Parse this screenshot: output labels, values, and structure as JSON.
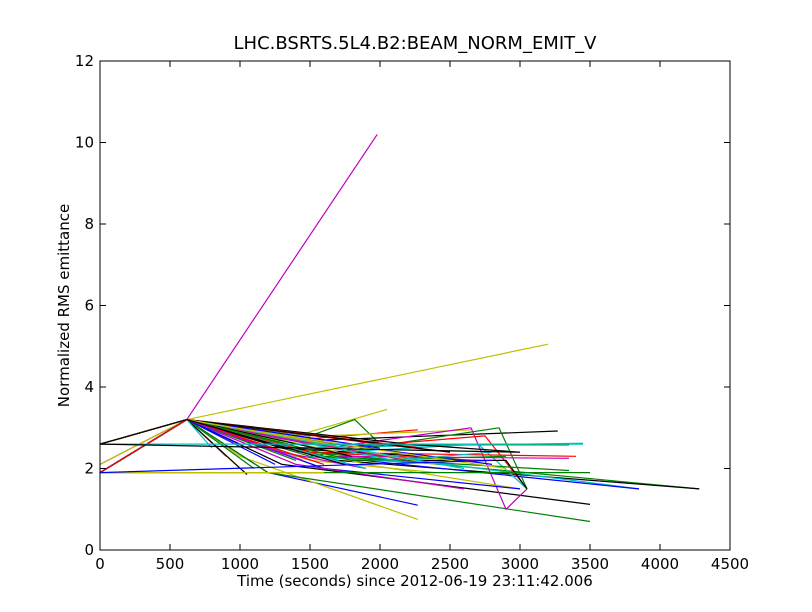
{
  "chart_data": {
    "type": "line",
    "title": "LHC.BSRTS.5L4.B2:BEAM_NORM_EMIT_V",
    "xlabel": "Time (seconds) since 2012-06-19 23:11:42.006",
    "ylabel": "Normalized RMS emittance",
    "xlim": [
      0,
      4500
    ],
    "ylim": [
      0,
      12
    ],
    "xticks": [
      0,
      500,
      1000,
      1500,
      2000,
      2500,
      3000,
      3500,
      4000,
      4500
    ],
    "yticks": [
      0,
      2,
      4,
      6,
      8,
      10,
      12
    ],
    "grid": false,
    "legend": "none",
    "series": [
      {
        "color": "#bf00bf",
        "x": [
          0,
          620,
          1980
        ],
        "y": [
          2.1,
          3.2,
          10.2
        ]
      },
      {
        "color": "#bfbf00",
        "x": [
          0,
          620,
          3200
        ],
        "y": [
          2.6,
          3.2,
          5.05
        ]
      },
      {
        "color": "#bfbf00",
        "x": [
          0,
          620,
          1200,
          2050
        ],
        "y": [
          2.1,
          3.2,
          2.6,
          3.45
        ]
      },
      {
        "color": "#008000",
        "x": [
          0,
          620,
          1500,
          1820,
          2000
        ],
        "y": [
          2.6,
          3.2,
          2.8,
          3.2,
          2.6
        ]
      },
      {
        "color": "#000000",
        "x": [
          0,
          620,
          1600,
          3270
        ],
        "y": [
          2.6,
          3.2,
          2.7,
          2.92
        ]
      },
      {
        "color": "#ff0000",
        "x": [
          0,
          620,
          1400,
          2270
        ],
        "y": [
          2.6,
          3.2,
          2.7,
          2.95
        ]
      },
      {
        "color": "#bfbf00",
        "x": [
          0,
          620,
          1600,
          2650
        ],
        "y": [
          2.6,
          3.2,
          2.8,
          2.95
        ]
      },
      {
        "color": "#00bfbf",
        "x": [
          0,
          620,
          1200,
          3450
        ],
        "y": [
          2.6,
          3.2,
          2.5,
          2.62
        ]
      },
      {
        "color": "#008000",
        "x": [
          0,
          620,
          1300,
          3350
        ],
        "y": [
          2.6,
          3.2,
          2.6,
          2.58
        ]
      },
      {
        "color": "#0000ff",
        "x": [
          0,
          620,
          1200,
          2270
        ],
        "y": [
          1.9,
          3.2,
          1.9,
          1.1
        ]
      },
      {
        "color": "#bfbf00",
        "x": [
          0,
          620,
          1000,
          2270
        ],
        "y": [
          2.6,
          3.2,
          2.3,
          0.75
        ]
      },
      {
        "color": "#008000",
        "x": [
          0,
          620,
          1200,
          3500
        ],
        "y": [
          2.6,
          3.2,
          1.9,
          0.7
        ]
      },
      {
        "color": "#000000",
        "x": [
          0,
          620,
          1300,
          3500
        ],
        "y": [
          2.6,
          3.2,
          2.1,
          1.12
        ]
      },
      {
        "color": "#008000",
        "x": [
          0,
          620,
          1500,
          4280
        ],
        "y": [
          2.6,
          3.2,
          2.4,
          1.5
        ]
      },
      {
        "color": "#000000",
        "x": [
          0,
          620,
          1700,
          4280
        ],
        "y": [
          1.9,
          3.2,
          2.2,
          1.5
        ]
      },
      {
        "color": "#00bfbf",
        "x": [
          0,
          620,
          1800,
          3850
        ],
        "y": [
          2.6,
          3.2,
          2.4,
          1.5
        ]
      },
      {
        "color": "#0000ff",
        "x": [
          0,
          620,
          1600,
          3850
        ],
        "y": [
          1.9,
          3.2,
          2.3,
          1.5
        ]
      },
      {
        "color": "#bf00bf",
        "x": [
          0,
          620,
          1400,
          2650,
          2900,
          3050
        ],
        "y": [
          2.6,
          3.2,
          2.4,
          3.0,
          1.0,
          1.5
        ]
      },
      {
        "color": "#008000",
        "x": [
          0,
          620,
          1500,
          2850,
          3050
        ],
        "y": [
          2.6,
          3.2,
          2.3,
          3.0,
          1.5
        ]
      },
      {
        "color": "#ff0000",
        "x": [
          0,
          620,
          1700,
          2750,
          3050
        ],
        "y": [
          2.6,
          3.2,
          2.5,
          2.8,
          1.5
        ]
      },
      {
        "color": "#00bfbf",
        "x": [
          0,
          620,
          1700,
          2700,
          3050
        ],
        "y": [
          2.6,
          3.2,
          2.4,
          2.6,
          1.5
        ]
      },
      {
        "color": "#000000",
        "x": [
          0,
          620,
          1800,
          2900,
          3050
        ],
        "y": [
          1.9,
          3.2,
          2.2,
          2.2,
          1.5
        ]
      },
      {
        "color": "#bf00bf",
        "x": [
          0,
          620,
          1600,
          3350
        ],
        "y": [
          2.6,
          3.2,
          2.3,
          2.25
        ]
      },
      {
        "color": "#ff0000",
        "x": [
          0,
          620,
          1500,
          3400
        ],
        "y": [
          2.6,
          3.2,
          2.4,
          2.3
        ]
      },
      {
        "color": "#008000",
        "x": [
          0,
          620,
          1600,
          3350
        ],
        "y": [
          2.6,
          3.2,
          2.3,
          1.95
        ]
      },
      {
        "color": "#bfbf00",
        "x": [
          0,
          620,
          1900,
          3000
        ],
        "y": [
          1.9,
          3.2,
          2.1,
          1.5
        ]
      },
      {
        "color": "#0000ff",
        "x": [
          0,
          620,
          1600,
          3000
        ],
        "y": [
          1.9,
          3.2,
          2.0,
          1.5
        ]
      },
      {
        "color": "#bf00bf",
        "x": [
          0,
          620,
          1400,
          2600
        ],
        "y": [
          1.9,
          3.2,
          2.1,
          1.5
        ]
      },
      {
        "color": "#ff0000",
        "x": [
          0,
          620,
          1500,
          2700
        ],
        "y": [
          2.6,
          3.2,
          2.4,
          2.2
        ]
      },
      {
        "color": "#000000",
        "x": [
          0,
          620,
          1300,
          2300
        ],
        "y": [
          2.6,
          3.2,
          2.5,
          2.3
        ]
      },
      {
        "color": "#00bfbf",
        "x": [
          0,
          620,
          1400,
          2500
        ],
        "y": [
          1.9,
          3.2,
          2.3,
          2.1
        ]
      },
      {
        "color": "#bfbf00",
        "x": [
          0,
          620,
          1500,
          2400
        ],
        "y": [
          2.6,
          3.2,
          2.2,
          1.9
        ]
      },
      {
        "color": "#bf00bf",
        "x": [
          0,
          620,
          1300,
          1900
        ],
        "y": [
          1.9,
          3.2,
          2.4,
          2.0
        ]
      },
      {
        "color": "#0000ff",
        "x": [
          0,
          620,
          1700,
          2800
        ],
        "y": [
          2.6,
          3.2,
          2.6,
          2.1
        ]
      },
      {
        "color": "#008000",
        "x": [
          0,
          620,
          1800,
          2900
        ],
        "y": [
          1.9,
          3.2,
          2.2,
          2.3
        ]
      },
      {
        "color": "#ff0000",
        "x": [
          0,
          620,
          2000,
          2500
        ],
        "y": [
          2.6,
          3.2,
          2.6,
          2.4
        ]
      },
      {
        "color": "#bfbf00",
        "x": [
          0,
          620,
          1900,
          2900
        ],
        "y": [
          2.6,
          3.2,
          2.5,
          2.0
        ]
      },
      {
        "color": "#000000",
        "x": [
          0,
          620,
          2200,
          3000
        ],
        "y": [
          2.6,
          3.2,
          2.6,
          2.4
        ]
      },
      {
        "color": "#00bfbf",
        "x": [
          0,
          620,
          2100,
          2800
        ],
        "y": [
          1.9,
          3.2,
          2.2,
          2.4
        ]
      },
      {
        "color": "#0000ff",
        "x": [
          0,
          620,
          1000
        ],
        "y": [
          2.6,
          3.2,
          2.6
        ]
      },
      {
        "color": "#008000",
        "x": [
          0,
          620,
          1100
        ],
        "y": [
          1.9,
          3.2,
          2.0
        ]
      },
      {
        "color": "#bf00bf",
        "x": [
          0,
          620,
          900
        ],
        "y": [
          2.6,
          3.2,
          2.3
        ]
      },
      {
        "color": "#ff0000",
        "x": [
          0,
          620,
          1200
        ],
        "y": [
          1.9,
          3.2,
          2.8
        ]
      },
      {
        "color": "#bfbf00",
        "x": [
          0,
          620,
          1000
        ],
        "y": [
          1.9,
          3.2,
          2.0
        ]
      },
      {
        "color": "#000000",
        "x": [
          0,
          620,
          1050
        ],
        "y": [
          2.6,
          3.2,
          1.85
        ]
      },
      {
        "color": "#00bfbf",
        "x": [
          0,
          620,
          800
        ],
        "y": [
          2.6,
          3.2,
          2.5
        ]
      },
      {
        "color": "#0000ff",
        "x": [
          0,
          620,
          1300
        ],
        "y": [
          1.9,
          3.2,
          2.7
        ]
      },
      {
        "color": "#008000",
        "x": [
          0,
          620,
          1400
        ],
        "y": [
          2.6,
          3.2,
          2.2
        ]
      },
      {
        "color": "#bf00bf",
        "x": [
          0,
          620,
          1500
        ],
        "y": [
          1.9,
          3.2,
          2.6
        ]
      },
      {
        "color": "#ff0000",
        "x": [
          0,
          620,
          1600
        ],
        "y": [
          2.6,
          3.2,
          2.1
        ]
      },
      {
        "color": "#bfbf00",
        "x": [
          0,
          620,
          1700
        ],
        "y": [
          1.9,
          3.2,
          2.4
        ]
      },
      {
        "color": "#000000",
        "x": [
          0,
          620,
          1800
        ],
        "y": [
          1.9,
          3.2,
          2.3
        ]
      },
      {
        "color": "#00bfbf",
        "x": [
          0,
          620,
          1900
        ],
        "y": [
          2.6,
          3.2,
          2.0
        ]
      },
      {
        "color": "#0000ff",
        "x": [
          0,
          620,
          2000
        ],
        "y": [
          1.9,
          3.2,
          2.5
        ]
      },
      {
        "color": "#008000",
        "x": [
          0,
          620,
          2100
        ],
        "y": [
          2.6,
          3.2,
          2.3
        ]
      },
      {
        "color": "#bf00bf",
        "x": [
          0,
          620,
          2200
        ],
        "y": [
          1.9,
          3.2,
          2.2
        ]
      },
      {
        "color": "#ff0000",
        "x": [
          0,
          620,
          2300
        ],
        "y": [
          2.6,
          3.2,
          2.5
        ]
      },
      {
        "color": "#bfbf00",
        "x": [
          0,
          620,
          2400
        ],
        "y": [
          2.6,
          3.2,
          2.1
        ]
      },
      {
        "color": "#000000",
        "x": [
          0,
          620,
          2500
        ],
        "y": [
          1.9,
          3.2,
          2.4
        ]
      },
      {
        "color": "#00bfbf",
        "x": [
          0,
          620,
          2600
        ],
        "y": [
          1.9,
          3.2,
          2.0
        ]
      },
      {
        "color": "#0000ff",
        "x": [
          0,
          620,
          1250
        ],
        "y": [
          1.9,
          3.2,
          2.1
        ]
      },
      {
        "color": "#008000",
        "x": [
          0,
          620,
          1350
        ],
        "y": [
          1.9,
          3.2,
          2.6
        ]
      },
      {
        "color": "#bf00bf",
        "x": [
          0,
          620,
          1450
        ],
        "y": [
          2.6,
          3.2,
          2.2
        ]
      },
      {
        "color": "#ff0000",
        "x": [
          0,
          620,
          1550
        ],
        "y": [
          1.9,
          3.2,
          2.3
        ]
      },
      {
        "color": "#bfbf00",
        "x": [
          0,
          620,
          1650
        ],
        "y": [
          2.6,
          3.2,
          2.6
        ]
      },
      {
        "color": "#000000",
        "x": [
          0,
          620,
          1750
        ],
        "y": [
          2.6,
          3.2,
          2.1
        ]
      },
      {
        "color": "#008000",
        "x": [
          0,
          3500
        ],
        "y": [
          1.9,
          1.9
        ]
      },
      {
        "color": "#bfbf00",
        "x": [
          0,
          1600
        ],
        "y": [
          1.9,
          1.9
        ]
      },
      {
        "color": "#00bfbf",
        "x": [
          0,
          3450
        ],
        "y": [
          2.6,
          2.6
        ]
      },
      {
        "color": "#000000",
        "x": [
          0,
          3000
        ],
        "y": [
          2.6,
          2.4
        ]
      },
      {
        "color": "#0000ff",
        "x": [
          0,
          2800
        ],
        "y": [
          1.9,
          2.2
        ]
      }
    ]
  }
}
